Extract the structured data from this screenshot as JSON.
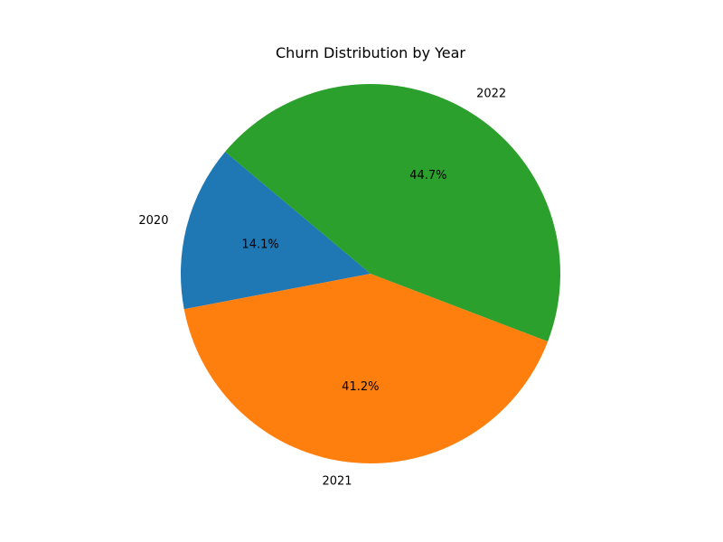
{
  "chart_data": {
    "type": "pie",
    "title": "Churn Distribution by Year",
    "categories": [
      "2020",
      "2021",
      "2022"
    ],
    "values": [
      14.1,
      41.2,
      44.7
    ],
    "percent_labels": [
      "14.1%",
      "41.2%",
      "44.7%"
    ],
    "colors": [
      "#1f77b4",
      "#ff7f0e",
      "#2ca02c"
    ],
    "start_angle_deg": 140,
    "direction": "counterclockwise",
    "legend": "none"
  }
}
